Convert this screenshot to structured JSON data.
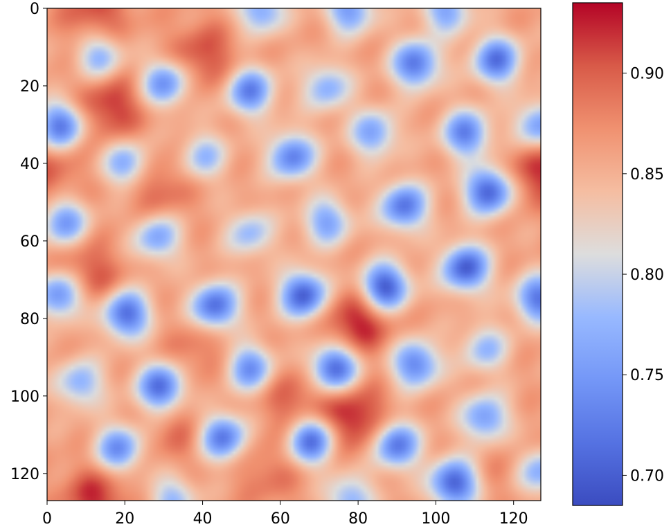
{
  "chart_data": {
    "type": "heatmap",
    "title": "",
    "xlabel": "",
    "ylabel": "",
    "grid_size": [
      128,
      128
    ],
    "xlim": [
      0,
      127
    ],
    "ylim": [
      127,
      0
    ],
    "y_axis_inverted": true,
    "x_ticks": [
      0,
      20,
      40,
      60,
      80,
      100,
      120
    ],
    "x_tick_labels": [
      "0",
      "20",
      "40",
      "60",
      "80",
      "100",
      "120"
    ],
    "y_ticks": [
      0,
      20,
      40,
      60,
      80,
      100,
      120
    ],
    "y_tick_labels": [
      "0",
      "20",
      "40",
      "60",
      "80",
      "100",
      "120"
    ],
    "colormap": "coolwarm",
    "value_range": [
      0.685,
      0.935
    ],
    "background_value": 0.86,
    "colorbar": {
      "ticks": [
        0.7,
        0.75,
        0.8,
        0.85,
        0.9
      ],
      "tick_labels": [
        "0.70",
        "0.75",
        "0.80",
        "0.85",
        "0.90"
      ]
    },
    "low_spots": [
      {
        "x": 13,
        "y": 12,
        "value": 0.77
      },
      {
        "x": 30,
        "y": 19,
        "value": 0.74
      },
      {
        "x": 52,
        "y": 21,
        "value": 0.73
      },
      {
        "x": 72,
        "y": 20,
        "value": 0.77
      },
      {
        "x": 95,
        "y": 14,
        "value": 0.72
      },
      {
        "x": 116,
        "y": 13,
        "value": 0.72
      },
      {
        "x": 3,
        "y": 30,
        "value": 0.72
      },
      {
        "x": 20,
        "y": 40,
        "value": 0.76
      },
      {
        "x": 40,
        "y": 38,
        "value": 0.78
      },
      {
        "x": 63,
        "y": 38,
        "value": 0.73
      },
      {
        "x": 84,
        "y": 32,
        "value": 0.76
      },
      {
        "x": 108,
        "y": 32,
        "value": 0.73
      },
      {
        "x": 127,
        "y": 30,
        "value": 0.75
      },
      {
        "x": 4,
        "y": 55,
        "value": 0.75
      },
      {
        "x": 28,
        "y": 59,
        "value": 0.76
      },
      {
        "x": 52,
        "y": 58,
        "value": 0.78
      },
      {
        "x": 72,
        "y": 55,
        "value": 0.76
      },
      {
        "x": 92,
        "y": 51,
        "value": 0.72
      },
      {
        "x": 114,
        "y": 47,
        "value": 0.7
      },
      {
        "x": 3,
        "y": 74,
        "value": 0.73
      },
      {
        "x": 20,
        "y": 79,
        "value": 0.71
      },
      {
        "x": 43,
        "y": 77,
        "value": 0.71
      },
      {
        "x": 66,
        "y": 74,
        "value": 0.7
      },
      {
        "x": 87,
        "y": 72,
        "value": 0.69
      },
      {
        "x": 108,
        "y": 67,
        "value": 0.7
      },
      {
        "x": 127,
        "y": 75,
        "value": 0.72
      },
      {
        "x": 8,
        "y": 97,
        "value": 0.77
      },
      {
        "x": 29,
        "y": 98,
        "value": 0.71
      },
      {
        "x": 52,
        "y": 93,
        "value": 0.74
      },
      {
        "x": 74,
        "y": 93,
        "value": 0.7
      },
      {
        "x": 95,
        "y": 92,
        "value": 0.73
      },
      {
        "x": 113,
        "y": 88,
        "value": 0.78
      },
      {
        "x": 18,
        "y": 114,
        "value": 0.74
      },
      {
        "x": 45,
        "y": 111,
        "value": 0.72
      },
      {
        "x": 68,
        "y": 112,
        "value": 0.71
      },
      {
        "x": 90,
        "y": 113,
        "value": 0.72
      },
      {
        "x": 113,
        "y": 106,
        "value": 0.75
      },
      {
        "x": 105,
        "y": 123,
        "value": 0.7
      },
      {
        "x": 127,
        "y": 120,
        "value": 0.76
      },
      {
        "x": 55,
        "y": 0,
        "value": 0.76
      },
      {
        "x": 78,
        "y": 0,
        "value": 0.75
      },
      {
        "x": 103,
        "y": 0,
        "value": 0.76
      },
      {
        "x": 32,
        "y": 127,
        "value": 0.78
      },
      {
        "x": 78,
        "y": 127,
        "value": 0.77
      }
    ],
    "high_spots": [
      {
        "x": 16,
        "y": 25,
        "value": 0.92
      },
      {
        "x": 40,
        "y": 12,
        "value": 0.91
      },
      {
        "x": 0,
        "y": 42,
        "value": 0.9
      },
      {
        "x": 127,
        "y": 42,
        "value": 0.92
      },
      {
        "x": 28,
        "y": 46,
        "value": 0.9
      },
      {
        "x": 10,
        "y": 69,
        "value": 0.91
      },
      {
        "x": 80,
        "y": 81,
        "value": 0.93
      },
      {
        "x": 39,
        "y": 88,
        "value": 0.89
      },
      {
        "x": 63,
        "y": 101,
        "value": 0.9
      },
      {
        "x": 79,
        "y": 106,
        "value": 0.93
      },
      {
        "x": 12,
        "y": 127,
        "value": 0.92
      },
      {
        "x": 12,
        "y": 0,
        "value": 0.91
      },
      {
        "x": 34,
        "y": 110,
        "value": 0.89
      },
      {
        "x": 57,
        "y": 120,
        "value": 0.89
      },
      {
        "x": 120,
        "y": 120,
        "value": 0.88
      }
    ]
  }
}
